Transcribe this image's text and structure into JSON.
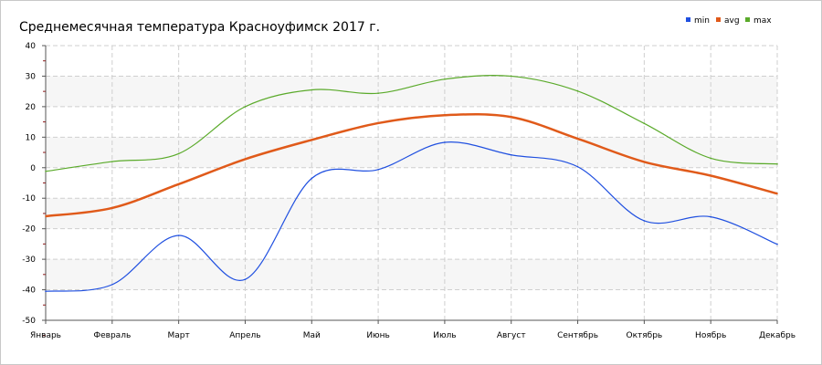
{
  "chart_data": {
    "type": "line",
    "title": "Среднемесячная температура Красноуфимск  2017 г.",
    "categories": [
      "Январь",
      "Февраль",
      "Март",
      "Апрель",
      "Май",
      "Июнь",
      "Июль",
      "Август",
      "Сентябрь",
      "Октябрь",
      "Ноябрь",
      "Декабрь"
    ],
    "y_ticks": [
      40,
      30,
      20,
      10,
      0,
      -10,
      -20,
      -30,
      -40,
      -50
    ],
    "ylim": [
      -50,
      40
    ],
    "grid": true,
    "legend_position": "top-right",
    "series": [
      {
        "name": "min",
        "color": "#2050e0",
        "values": [
          -40.5,
          -38.3,
          -22.2,
          -36.6,
          -3.5,
          -0.6,
          8.3,
          4.2,
          0.3,
          -17.4,
          -16.1,
          -25.1
        ]
      },
      {
        "name": "avg",
        "color": "#e05a1a",
        "values": [
          -15.9,
          -13.2,
          -5.4,
          2.8,
          9.1,
          14.6,
          17.2,
          16.6,
          9.5,
          1.9,
          -2.6,
          -8.5
        ]
      },
      {
        "name": "max",
        "color": "#5aaa2a",
        "values": [
          -1.2,
          2.0,
          4.6,
          20.0,
          25.5,
          24.4,
          29.0,
          30.0,
          25.1,
          14.5,
          3.1,
          1.2
        ]
      }
    ]
  }
}
